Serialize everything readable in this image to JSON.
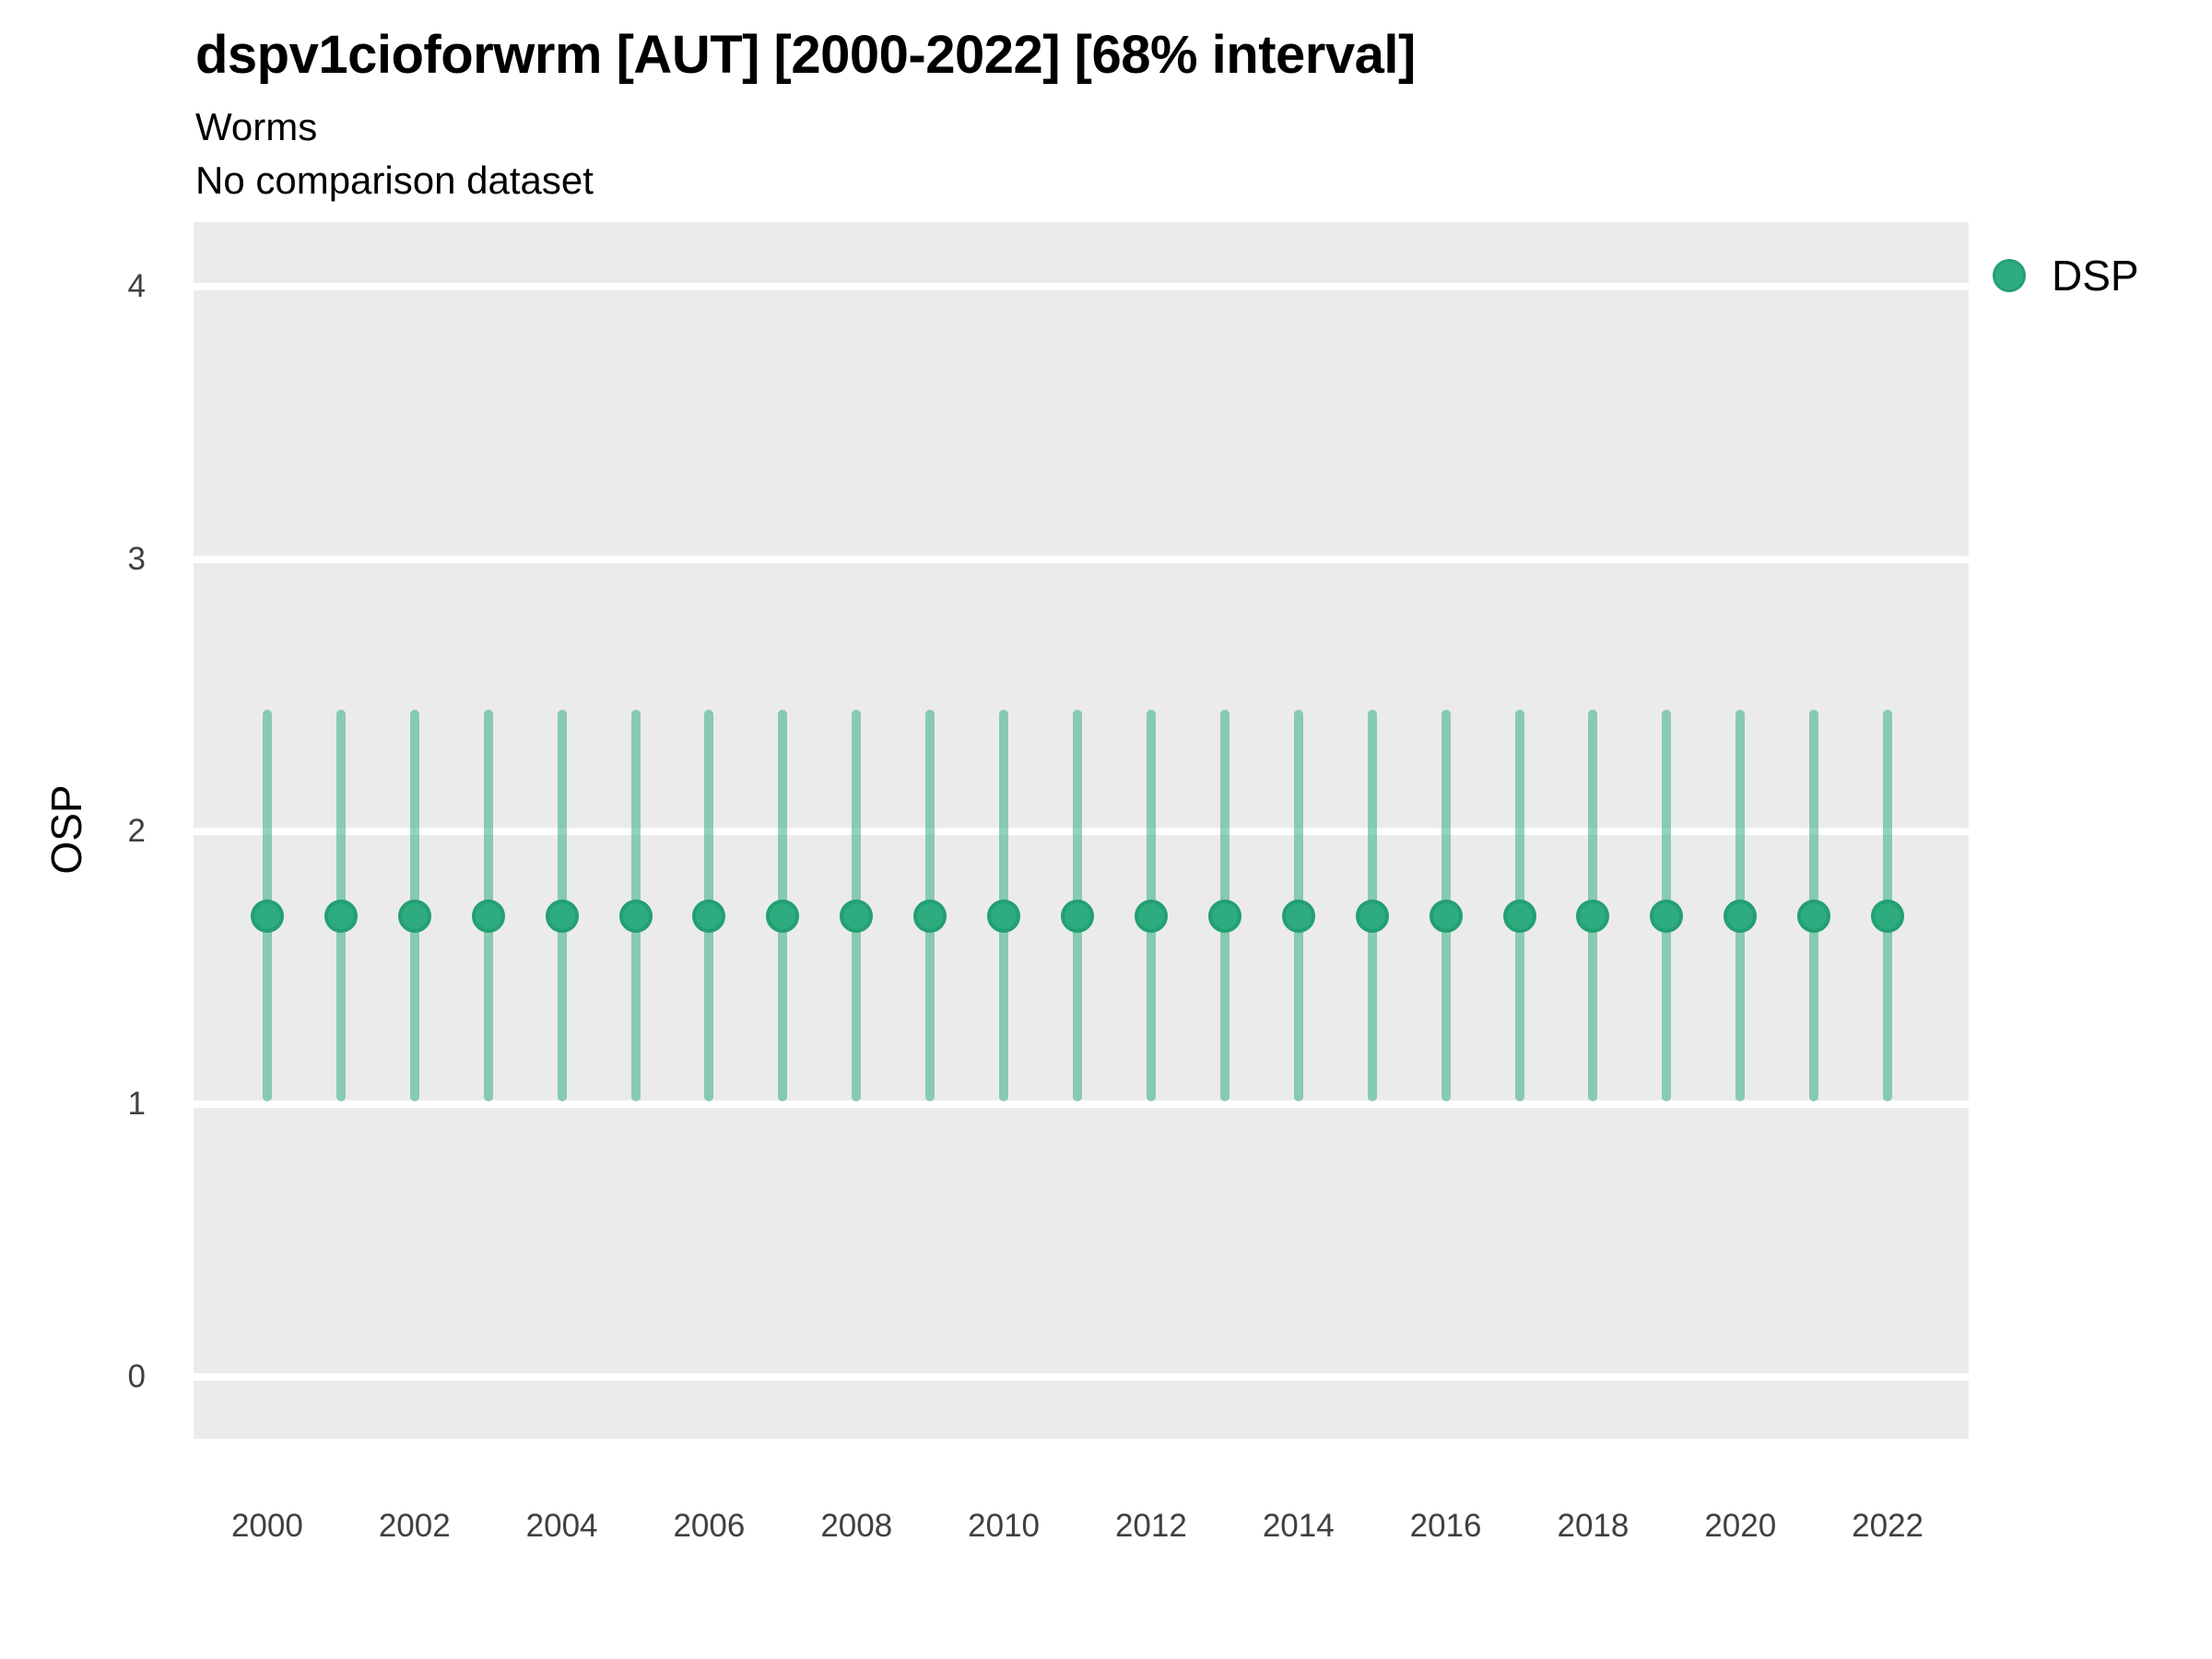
{
  "header": {
    "title": "dspv1cioforwrm [AUT] [2000-2022] [68% interval]",
    "subtitle": "Worms",
    "note": "No comparison dataset"
  },
  "y_axis": {
    "title": "OSP"
  },
  "legend": {
    "items": [
      {
        "label": "DSP",
        "marker": "circle-icon"
      }
    ]
  },
  "colors": {
    "panel_bg": "#EBEBEB",
    "gridline": "#FFFFFF",
    "point_fill": "#2FAB80",
    "point_stroke": "#23A071",
    "errorbar": "rgba(46,171,127,0.53)",
    "tick_text": "#404040",
    "title_text": "#000000"
  },
  "chart_data": {
    "type": "scatter",
    "title": "dspv1cioforwrm [AUT] [2000-2022] [68% interval]",
    "subtitle": "Worms",
    "annotation": "No comparison dataset",
    "xlabel": "",
    "ylabel": "OSP",
    "interval": "68%",
    "grid": "horizontal-major-only",
    "legend_position": "right-top",
    "x": [
      2000,
      2001,
      2002,
      2003,
      2004,
      2005,
      2006,
      2007,
      2008,
      2009,
      2010,
      2011,
      2012,
      2013,
      2014,
      2015,
      2016,
      2017,
      2018,
      2019,
      2020,
      2021,
      2022
    ],
    "series": [
      {
        "name": "DSP",
        "values": [
          1.69,
          1.69,
          1.69,
          1.69,
          1.69,
          1.69,
          1.69,
          1.69,
          1.69,
          1.69,
          1.69,
          1.69,
          1.69,
          1.69,
          1.69,
          1.69,
          1.69,
          1.69,
          1.69,
          1.69,
          1.69,
          1.69,
          1.69
        ],
        "lower": [
          1.03,
          1.03,
          1.03,
          1.03,
          1.03,
          1.03,
          1.03,
          1.03,
          1.03,
          1.03,
          1.03,
          1.03,
          1.03,
          1.03,
          1.03,
          1.03,
          1.03,
          1.03,
          1.03,
          1.03,
          1.03,
          1.03,
          1.03
        ],
        "upper": [
          2.43,
          2.43,
          2.43,
          2.43,
          2.43,
          2.43,
          2.43,
          2.43,
          2.43,
          2.43,
          2.43,
          2.43,
          2.43,
          2.43,
          2.43,
          2.43,
          2.43,
          2.43,
          2.43,
          2.43,
          2.43,
          2.43,
          2.43
        ]
      }
    ],
    "xticks": [
      2000,
      2002,
      2004,
      2006,
      2008,
      2010,
      2012,
      2014,
      2016,
      2018,
      2020,
      2022
    ],
    "yticks": [
      0,
      1,
      2,
      3,
      4
    ],
    "xlim": [
      1999,
      2023.1
    ],
    "ylim": [
      -0.225,
      4.235
    ]
  }
}
